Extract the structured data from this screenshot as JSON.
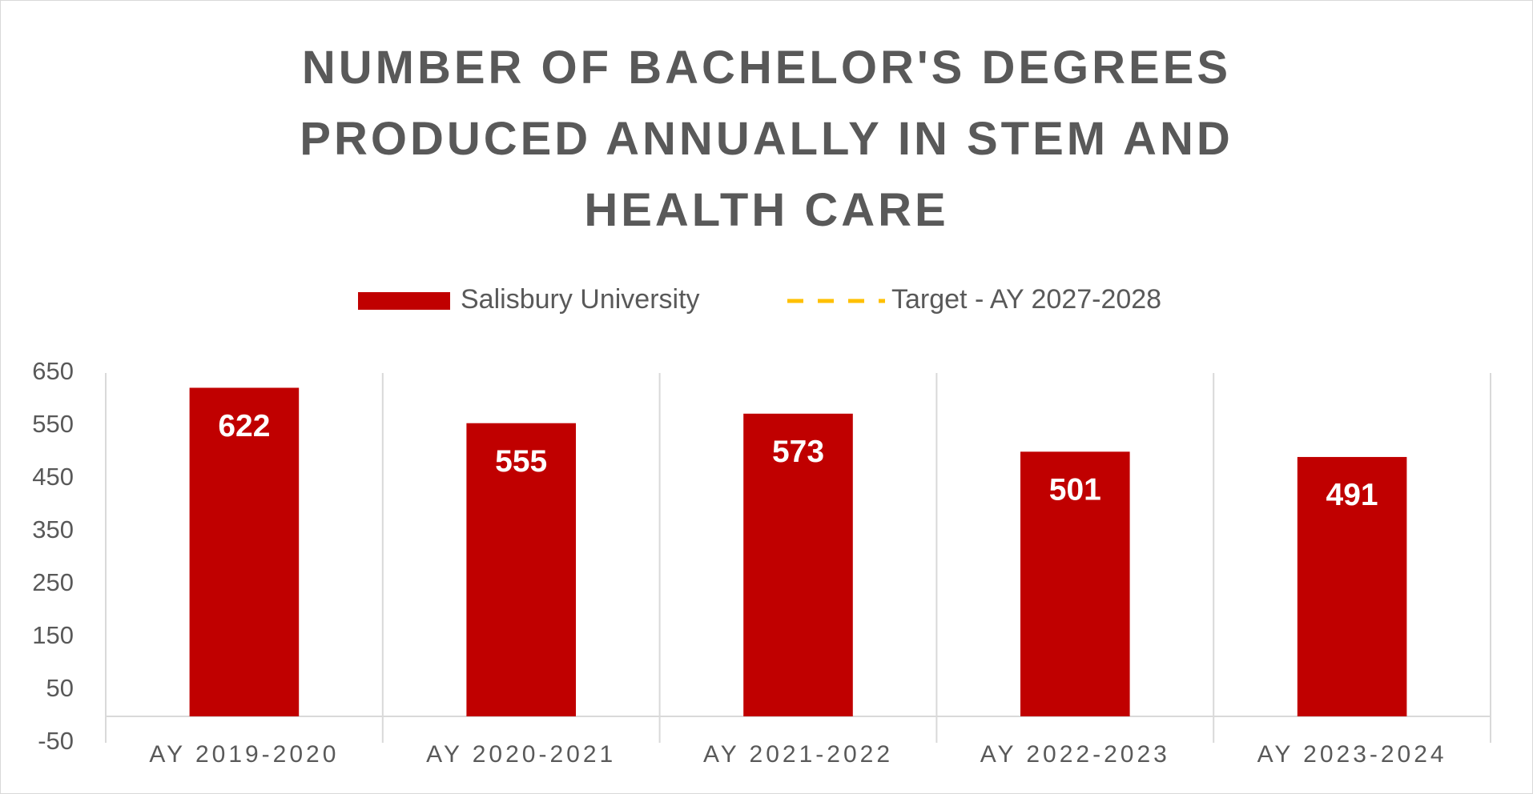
{
  "chart_data": {
    "type": "bar",
    "title": "NUMBER OF BACHELOR'S DEGREES PRODUCED ANNUALLY IN STEM AND HEALTH CARE",
    "categories": [
      "AY 2019-2020",
      "AY 2020-2021",
      "AY 2021-2022",
      "AY 2022-2023",
      "AY 2023-2024"
    ],
    "series": [
      {
        "name": "Salisbury University",
        "color": "#c00000",
        "values": [
          622,
          555,
          573,
          501,
          491
        ]
      },
      {
        "name": "Target - AY 2027-2028",
        "color": "#ffc000",
        "type": "line",
        "values": [
          null,
          null,
          null,
          null,
          null
        ]
      }
    ],
    "ylim": [
      -50,
      650
    ],
    "yticks": [
      -50,
      50,
      150,
      250,
      350,
      450,
      550,
      650
    ],
    "legend": "top"
  }
}
